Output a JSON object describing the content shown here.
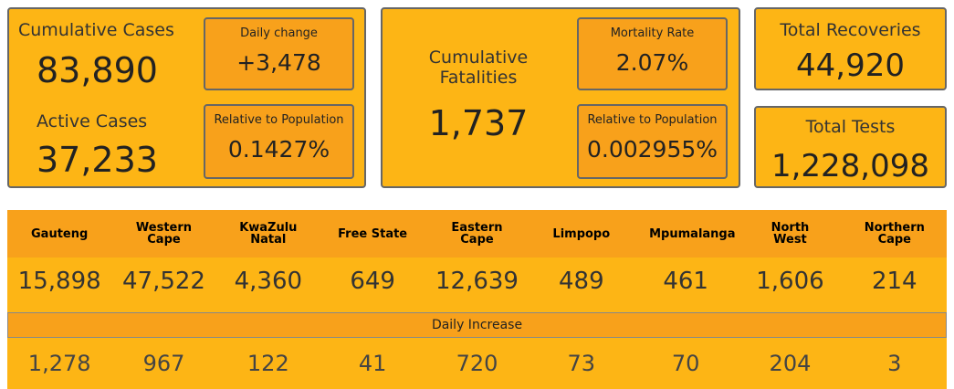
{
  "cards": {
    "cases": {
      "label": "Cumulative Cases",
      "value": "83,890",
      "daily_change": {
        "label": "Daily change",
        "value": "+3,478"
      },
      "active": {
        "label": "Active Cases",
        "value": "37,233"
      },
      "relative": {
        "label": "Relative to Population",
        "value": "0.1427%"
      }
    },
    "fatalities": {
      "label": "Cumulative Fatalities",
      "value": "1,737",
      "mortality": {
        "label": "Mortality Rate",
        "value": "2.07%"
      },
      "relative": {
        "label": "Relative to Population",
        "value": "0.002955%"
      }
    },
    "recoveries": {
      "label": "Total Recoveries",
      "value": "44,920"
    },
    "tests": {
      "label": "Total Tests",
      "value": "1,228,098"
    }
  },
  "table": {
    "provinces": [
      "Gauteng",
      "Western Cape",
      "KwaZulu Natal",
      "Free State",
      "Eastern Cape",
      "Limpopo",
      "Mpumalanga",
      "North West",
      "Northern Cape"
    ],
    "totals": [
      "15,898",
      "47,522",
      "4,360",
      "649",
      "12,639",
      "489",
      "461",
      "1,606",
      "214"
    ],
    "daily_increase": {
      "title": "Daily Increase",
      "values": [
        "1,278",
        "967",
        "122",
        "41",
        "720",
        "73",
        "70",
        "204",
        "3"
      ]
    }
  }
}
